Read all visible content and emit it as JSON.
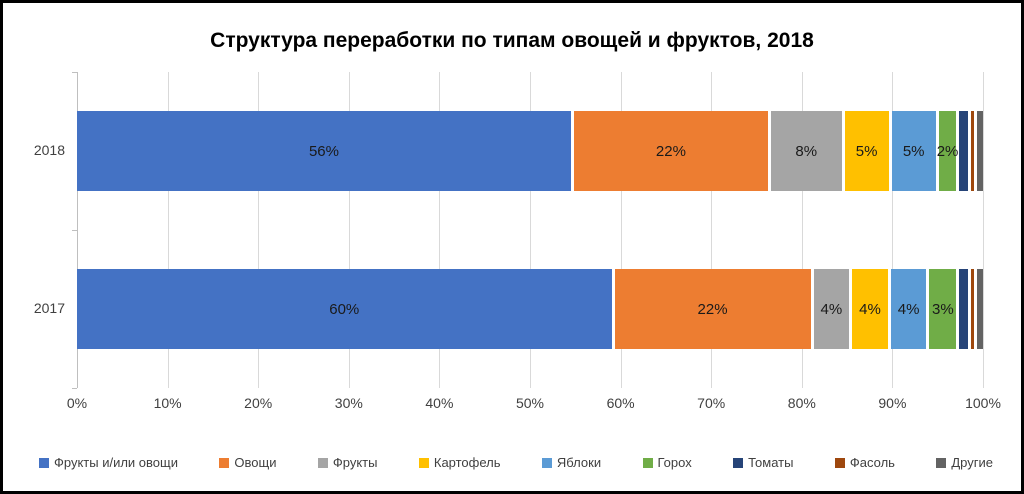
{
  "chart_data": {
    "type": "bar",
    "variant": "horizontal-stacked",
    "title": "Структура переработки по типам овощей и фруктов, 2018",
    "categories": [
      "2018",
      "2017"
    ],
    "series": [
      {
        "name": "Фрукты и/или овощи",
        "color": "#4472C4",
        "values": [
          56,
          60
        ],
        "labels": [
          "56%",
          "60%"
        ]
      },
      {
        "name": "Овощи",
        "color": "#ED7D31",
        "values": [
          22,
          22
        ],
        "labels": [
          "22%",
          "22%"
        ]
      },
      {
        "name": "Фрукты",
        "color": "#A5A5A5",
        "values": [
          8,
          4
        ],
        "labels": [
          "8%",
          "4%"
        ]
      },
      {
        "name": "Картофель",
        "color": "#FFC000",
        "values": [
          5,
          4
        ],
        "labels": [
          "5%",
          "4%"
        ]
      },
      {
        "name": "Яблоки",
        "color": "#5B9BD5",
        "values": [
          5,
          4
        ],
        "labels": [
          "5%",
          "4%"
        ]
      },
      {
        "name": "Горох",
        "color": "#70AD47",
        "values": [
          2,
          3
        ],
        "labels": [
          "2%",
          "3%"
        ]
      },
      {
        "name": "Томаты",
        "color": "#264478",
        "values": [
          1,
          1
        ],
        "labels": [
          "",
          ""
        ]
      },
      {
        "name": "Фасоль",
        "color": "#9E480E",
        "values": [
          0.35,
          0.35
        ],
        "labels": [
          "",
          ""
        ]
      },
      {
        "name": "Другие",
        "color": "#636363",
        "values": [
          0.65,
          0.65
        ],
        "labels": [
          "",
          ""
        ]
      }
    ],
    "x_axis": {
      "min": 0,
      "max": 100,
      "ticks": [
        "0%",
        "10%",
        "20%",
        "30%",
        "40%",
        "50%",
        "60%",
        "70%",
        "80%",
        "90%",
        "100%"
      ]
    },
    "grid": true,
    "legend_position": "bottom",
    "colors": {
      "gridline": "#d9d9d9",
      "axis_line": "#bfbfbf",
      "axis_text": "#404040",
      "data_label_text": "#1a1a1a",
      "title_text": "#000000"
    }
  }
}
